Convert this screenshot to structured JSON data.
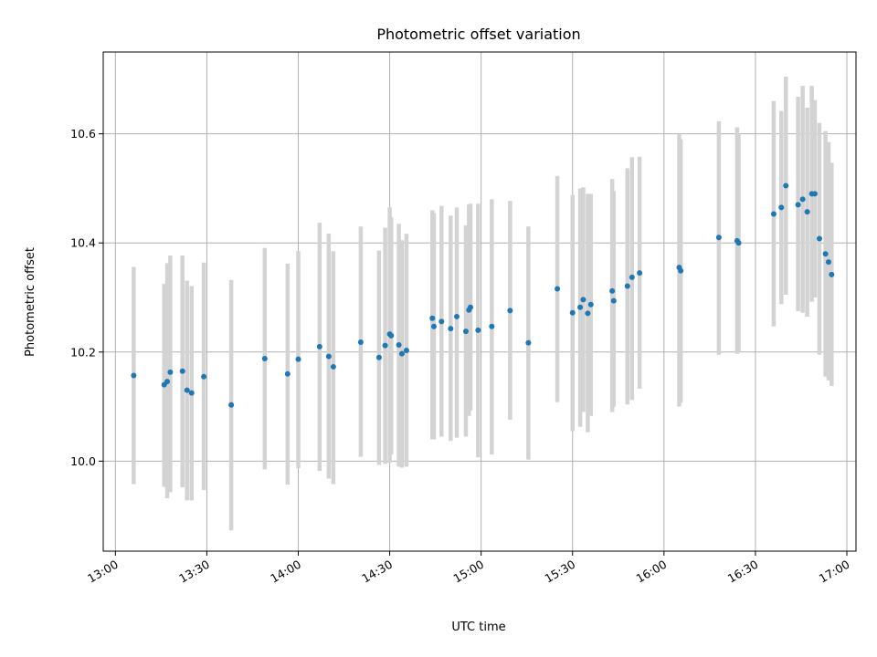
{
  "chart_data": {
    "type": "scatter",
    "title": "Photometric offset variation",
    "xlabel": "UTC time",
    "ylabel": "Photometric offset",
    "x_unit": "minutes",
    "xlim": [
      "12:56",
      "17:03"
    ],
    "ylim": [
      9.835,
      10.75
    ],
    "x_ticks": [
      "13:00",
      "13:30",
      "14:00",
      "14:30",
      "15:00",
      "15:30",
      "16:00",
      "16:30",
      "17:00"
    ],
    "y_ticks": [
      10.0,
      10.2,
      10.4,
      10.6
    ],
    "y_tick_labels": [
      "10.0",
      "10.2",
      "10.4",
      "10.6"
    ],
    "grid": true,
    "marker_color": "#1f77b4",
    "errorbar_color": "#d3d3d3",
    "points": [
      {
        "t": "13:06:00",
        "y": 10.157,
        "lo": 9.958,
        "hi": 10.356
      },
      {
        "t": "13:16:00",
        "y": 10.14,
        "lo": 9.953,
        "hi": 10.325
      },
      {
        "t": "13:17:00",
        "y": 10.146,
        "lo": 9.932,
        "hi": 10.363
      },
      {
        "t": "13:18:00",
        "y": 10.163,
        "lo": 9.943,
        "hi": 10.377
      },
      {
        "t": "13:22:00",
        "y": 10.165,
        "lo": 9.952,
        "hi": 10.377
      },
      {
        "t": "13:23:30",
        "y": 10.13,
        "lo": 9.928,
        "hi": 10.331
      },
      {
        "t": "13:25:00",
        "y": 10.125,
        "lo": 9.928,
        "hi": 10.321
      },
      {
        "t": "13:29:00",
        "y": 10.155,
        "lo": 9.947,
        "hi": 10.364
      },
      {
        "t": "13:38:00",
        "y": 10.103,
        "lo": 9.873,
        "hi": 10.332
      },
      {
        "t": "13:49:00",
        "y": 10.188,
        "lo": 9.985,
        "hi": 10.391
      },
      {
        "t": "13:56:30",
        "y": 10.16,
        "lo": 9.957,
        "hi": 10.362
      },
      {
        "t": "14:00:00",
        "y": 10.187,
        "lo": 9.987,
        "hi": 10.385
      },
      {
        "t": "14:07:00",
        "y": 10.21,
        "lo": 9.982,
        "hi": 10.437
      },
      {
        "t": "14:10:00",
        "y": 10.192,
        "lo": 9.968,
        "hi": 10.417
      },
      {
        "t": "14:11:30",
        "y": 10.173,
        "lo": 9.958,
        "hi": 10.385
      },
      {
        "t": "14:20:30",
        "y": 10.218,
        "lo": 10.008,
        "hi": 10.43
      },
      {
        "t": "14:26:30",
        "y": 10.19,
        "lo": 9.993,
        "hi": 10.386
      },
      {
        "t": "14:28:30",
        "y": 10.212,
        "lo": 9.995,
        "hi": 10.428
      },
      {
        "t": "14:30:00",
        "y": 10.233,
        "lo": 9.997,
        "hi": 10.465
      },
      {
        "t": "14:30:30",
        "y": 10.23,
        "lo": 10.012,
        "hi": 10.447
      },
      {
        "t": "14:33:00",
        "y": 10.213,
        "lo": 9.99,
        "hi": 10.435
      },
      {
        "t": "14:34:00",
        "y": 10.197,
        "lo": 9.988,
        "hi": 10.405
      },
      {
        "t": "14:35:30",
        "y": 10.203,
        "lo": 9.99,
        "hi": 10.417
      },
      {
        "t": "14:44:00",
        "y": 10.262,
        "lo": 10.04,
        "hi": 10.46
      },
      {
        "t": "14:44:30",
        "y": 10.247,
        "lo": 10.04,
        "hi": 10.455
      },
      {
        "t": "14:47:00",
        "y": 10.256,
        "lo": 10.045,
        "hi": 10.468
      },
      {
        "t": "14:50:00",
        "y": 10.243,
        "lo": 10.037,
        "hi": 10.45
      },
      {
        "t": "14:52:00",
        "y": 10.265,
        "lo": 10.043,
        "hi": 10.465
      },
      {
        "t": "14:55:00",
        "y": 10.238,
        "lo": 10.045,
        "hi": 10.432
      },
      {
        "t": "14:56:00",
        "y": 10.277,
        "lo": 10.083,
        "hi": 10.47
      },
      {
        "t": "14:56:30",
        "y": 10.282,
        "lo": 10.093,
        "hi": 10.472
      },
      {
        "t": "14:59:00",
        "y": 10.24,
        "lo": 10.007,
        "hi": 10.472
      },
      {
        "t": "15:03:30",
        "y": 10.247,
        "lo": 10.012,
        "hi": 10.48
      },
      {
        "t": "15:09:30",
        "y": 10.276,
        "lo": 10.076,
        "hi": 10.477
      },
      {
        "t": "15:15:30",
        "y": 10.217,
        "lo": 10.003,
        "hi": 10.43
      },
      {
        "t": "15:25:00",
        "y": 10.316,
        "lo": 10.108,
        "hi": 10.523
      },
      {
        "t": "15:30:00",
        "y": 10.272,
        "lo": 10.055,
        "hi": 10.488
      },
      {
        "t": "15:32:30",
        "y": 10.282,
        "lo": 10.063,
        "hi": 10.5
      },
      {
        "t": "15:33:30",
        "y": 10.296,
        "lo": 10.09,
        "hi": 10.502
      },
      {
        "t": "15:35:00",
        "y": 10.271,
        "lo": 10.053,
        "hi": 10.49
      },
      {
        "t": "15:36:00",
        "y": 10.287,
        "lo": 10.083,
        "hi": 10.49
      },
      {
        "t": "15:43:00",
        "y": 10.312,
        "lo": 10.09,
        "hi": 10.517
      },
      {
        "t": "15:43:30",
        "y": 10.294,
        "lo": 10.1,
        "hi": 10.495
      },
      {
        "t": "15:48:00",
        "y": 10.321,
        "lo": 10.104,
        "hi": 10.537
      },
      {
        "t": "15:49:30",
        "y": 10.337,
        "lo": 10.112,
        "hi": 10.557
      },
      {
        "t": "15:52:00",
        "y": 10.345,
        "lo": 10.133,
        "hi": 10.558
      },
      {
        "t": "16:05:00",
        "y": 10.355,
        "lo": 10.1,
        "hi": 10.6
      },
      {
        "t": "16:05:30",
        "y": 10.349,
        "lo": 10.107,
        "hi": 10.59
      },
      {
        "t": "16:18:00",
        "y": 10.41,
        "lo": 10.195,
        "hi": 10.623
      },
      {
        "t": "16:24:00",
        "y": 10.404,
        "lo": 10.197,
        "hi": 10.612
      },
      {
        "t": "16:24:30",
        "y": 10.4,
        "lo": 10.2,
        "hi": 10.6
      },
      {
        "t": "16:36:00",
        "y": 10.453,
        "lo": 10.247,
        "hi": 10.66
      },
      {
        "t": "16:38:30",
        "y": 10.465,
        "lo": 10.288,
        "hi": 10.642
      },
      {
        "t": "16:40:00",
        "y": 10.505,
        "lo": 10.305,
        "hi": 10.705
      },
      {
        "t": "16:44:00",
        "y": 10.47,
        "lo": 10.275,
        "hi": 10.668
      },
      {
        "t": "16:45:30",
        "y": 10.48,
        "lo": 10.272,
        "hi": 10.688
      },
      {
        "t": "16:47:00",
        "y": 10.457,
        "lo": 10.265,
        "hi": 10.648
      },
      {
        "t": "16:48:30",
        "y": 10.49,
        "lo": 10.292,
        "hi": 10.688
      },
      {
        "t": "16:49:30",
        "y": 10.49,
        "lo": 10.3,
        "hi": 10.662
      },
      {
        "t": "16:51:00",
        "y": 10.408,
        "lo": 10.195,
        "hi": 10.62
      },
      {
        "t": "16:53:00",
        "y": 10.38,
        "lo": 10.155,
        "hi": 10.605
      },
      {
        "t": "16:54:00",
        "y": 10.365,
        "lo": 10.148,
        "hi": 10.585
      },
      {
        "t": "16:55:00",
        "y": 10.342,
        "lo": 10.138,
        "hi": 10.547
      }
    ]
  }
}
